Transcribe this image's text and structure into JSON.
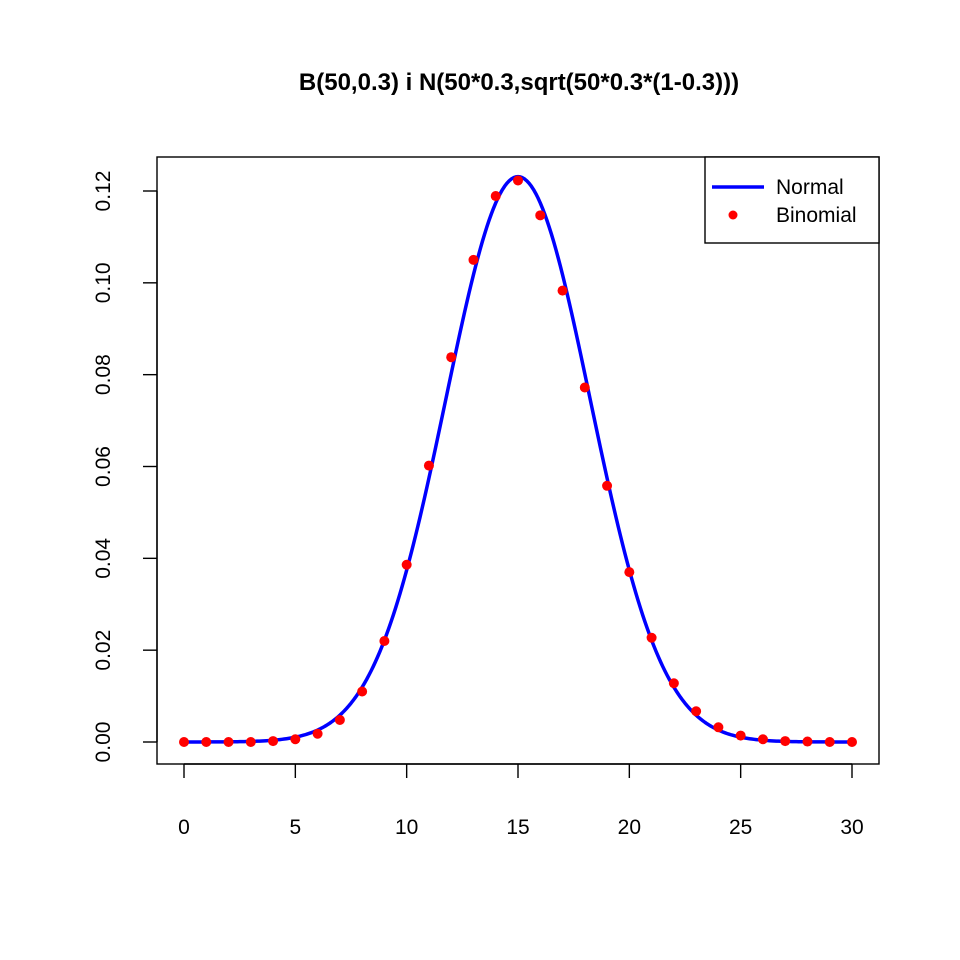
{
  "chart_data": {
    "type": "line",
    "title": "B(50,0.3) i N(50*0.3,sqrt(50*0.3*(1-0.3)))",
    "xlabel": "",
    "ylabel": "",
    "xlim": [
      0,
      30
    ],
    "ylim": [
      0,
      0.123
    ],
    "x_ticks": [
      "0",
      "5",
      "10",
      "15",
      "20",
      "25",
      "30"
    ],
    "y_ticks": [
      "0.00",
      "0.02",
      "0.04",
      "0.06",
      "0.08",
      "0.10",
      "0.12"
    ],
    "grid": false,
    "legend_position": "top-right",
    "series": [
      {
        "name": "Normal",
        "kind": "line",
        "color": "#0000ff",
        "mean": 15,
        "sd": 3.24
      },
      {
        "name": "Binomial",
        "kind": "points",
        "color": "#ff0000",
        "x": [
          0,
          1,
          2,
          3,
          4,
          5,
          6,
          7,
          8,
          9,
          10,
          11,
          12,
          13,
          14,
          15,
          16,
          17,
          18,
          19,
          20,
          21,
          22,
          23,
          24,
          25,
          26,
          27,
          28,
          29,
          30
        ],
        "values": [
          0.0,
          0.0,
          0.0,
          0.0,
          0.0002,
          0.0006,
          0.0018,
          0.0048,
          0.011,
          0.022,
          0.0386,
          0.0602,
          0.0838,
          0.105,
          0.1189,
          0.1223,
          0.1147,
          0.0983,
          0.0772,
          0.0558,
          0.037,
          0.0227,
          0.0128,
          0.0067,
          0.0032,
          0.0014,
          0.0006,
          0.0002,
          0.0001,
          0.0,
          0.0
        ]
      }
    ]
  }
}
